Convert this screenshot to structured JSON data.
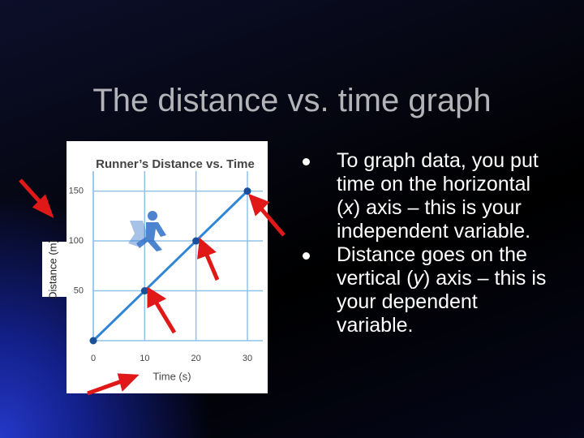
{
  "title": "The distance vs. time graph",
  "bullets": [
    [
      "To graph data, you put time on the horizontal (",
      "x",
      ") axis – this is your independent variable."
    ],
    [
      "Distance goes on the vertical (",
      "y",
      ") axis – this is your dependent variable."
    ]
  ],
  "chart_data": {
    "type": "line",
    "title": "Runner’s Distance vs. Time",
    "x_label": "Time (s)",
    "y_label": "Distance (m)",
    "x": [
      0,
      10,
      20,
      30
    ],
    "values": [
      0,
      50,
      100,
      150
    ],
    "color": "#2f86d6",
    "marker_color": "#1a4f9c",
    "xlim": [
      0,
      33
    ],
    "ylim": [
      0,
      170
    ],
    "xticks": [
      0,
      10,
      20,
      30
    ],
    "yticks": [
      50,
      100,
      150
    ],
    "grid": true
  }
}
